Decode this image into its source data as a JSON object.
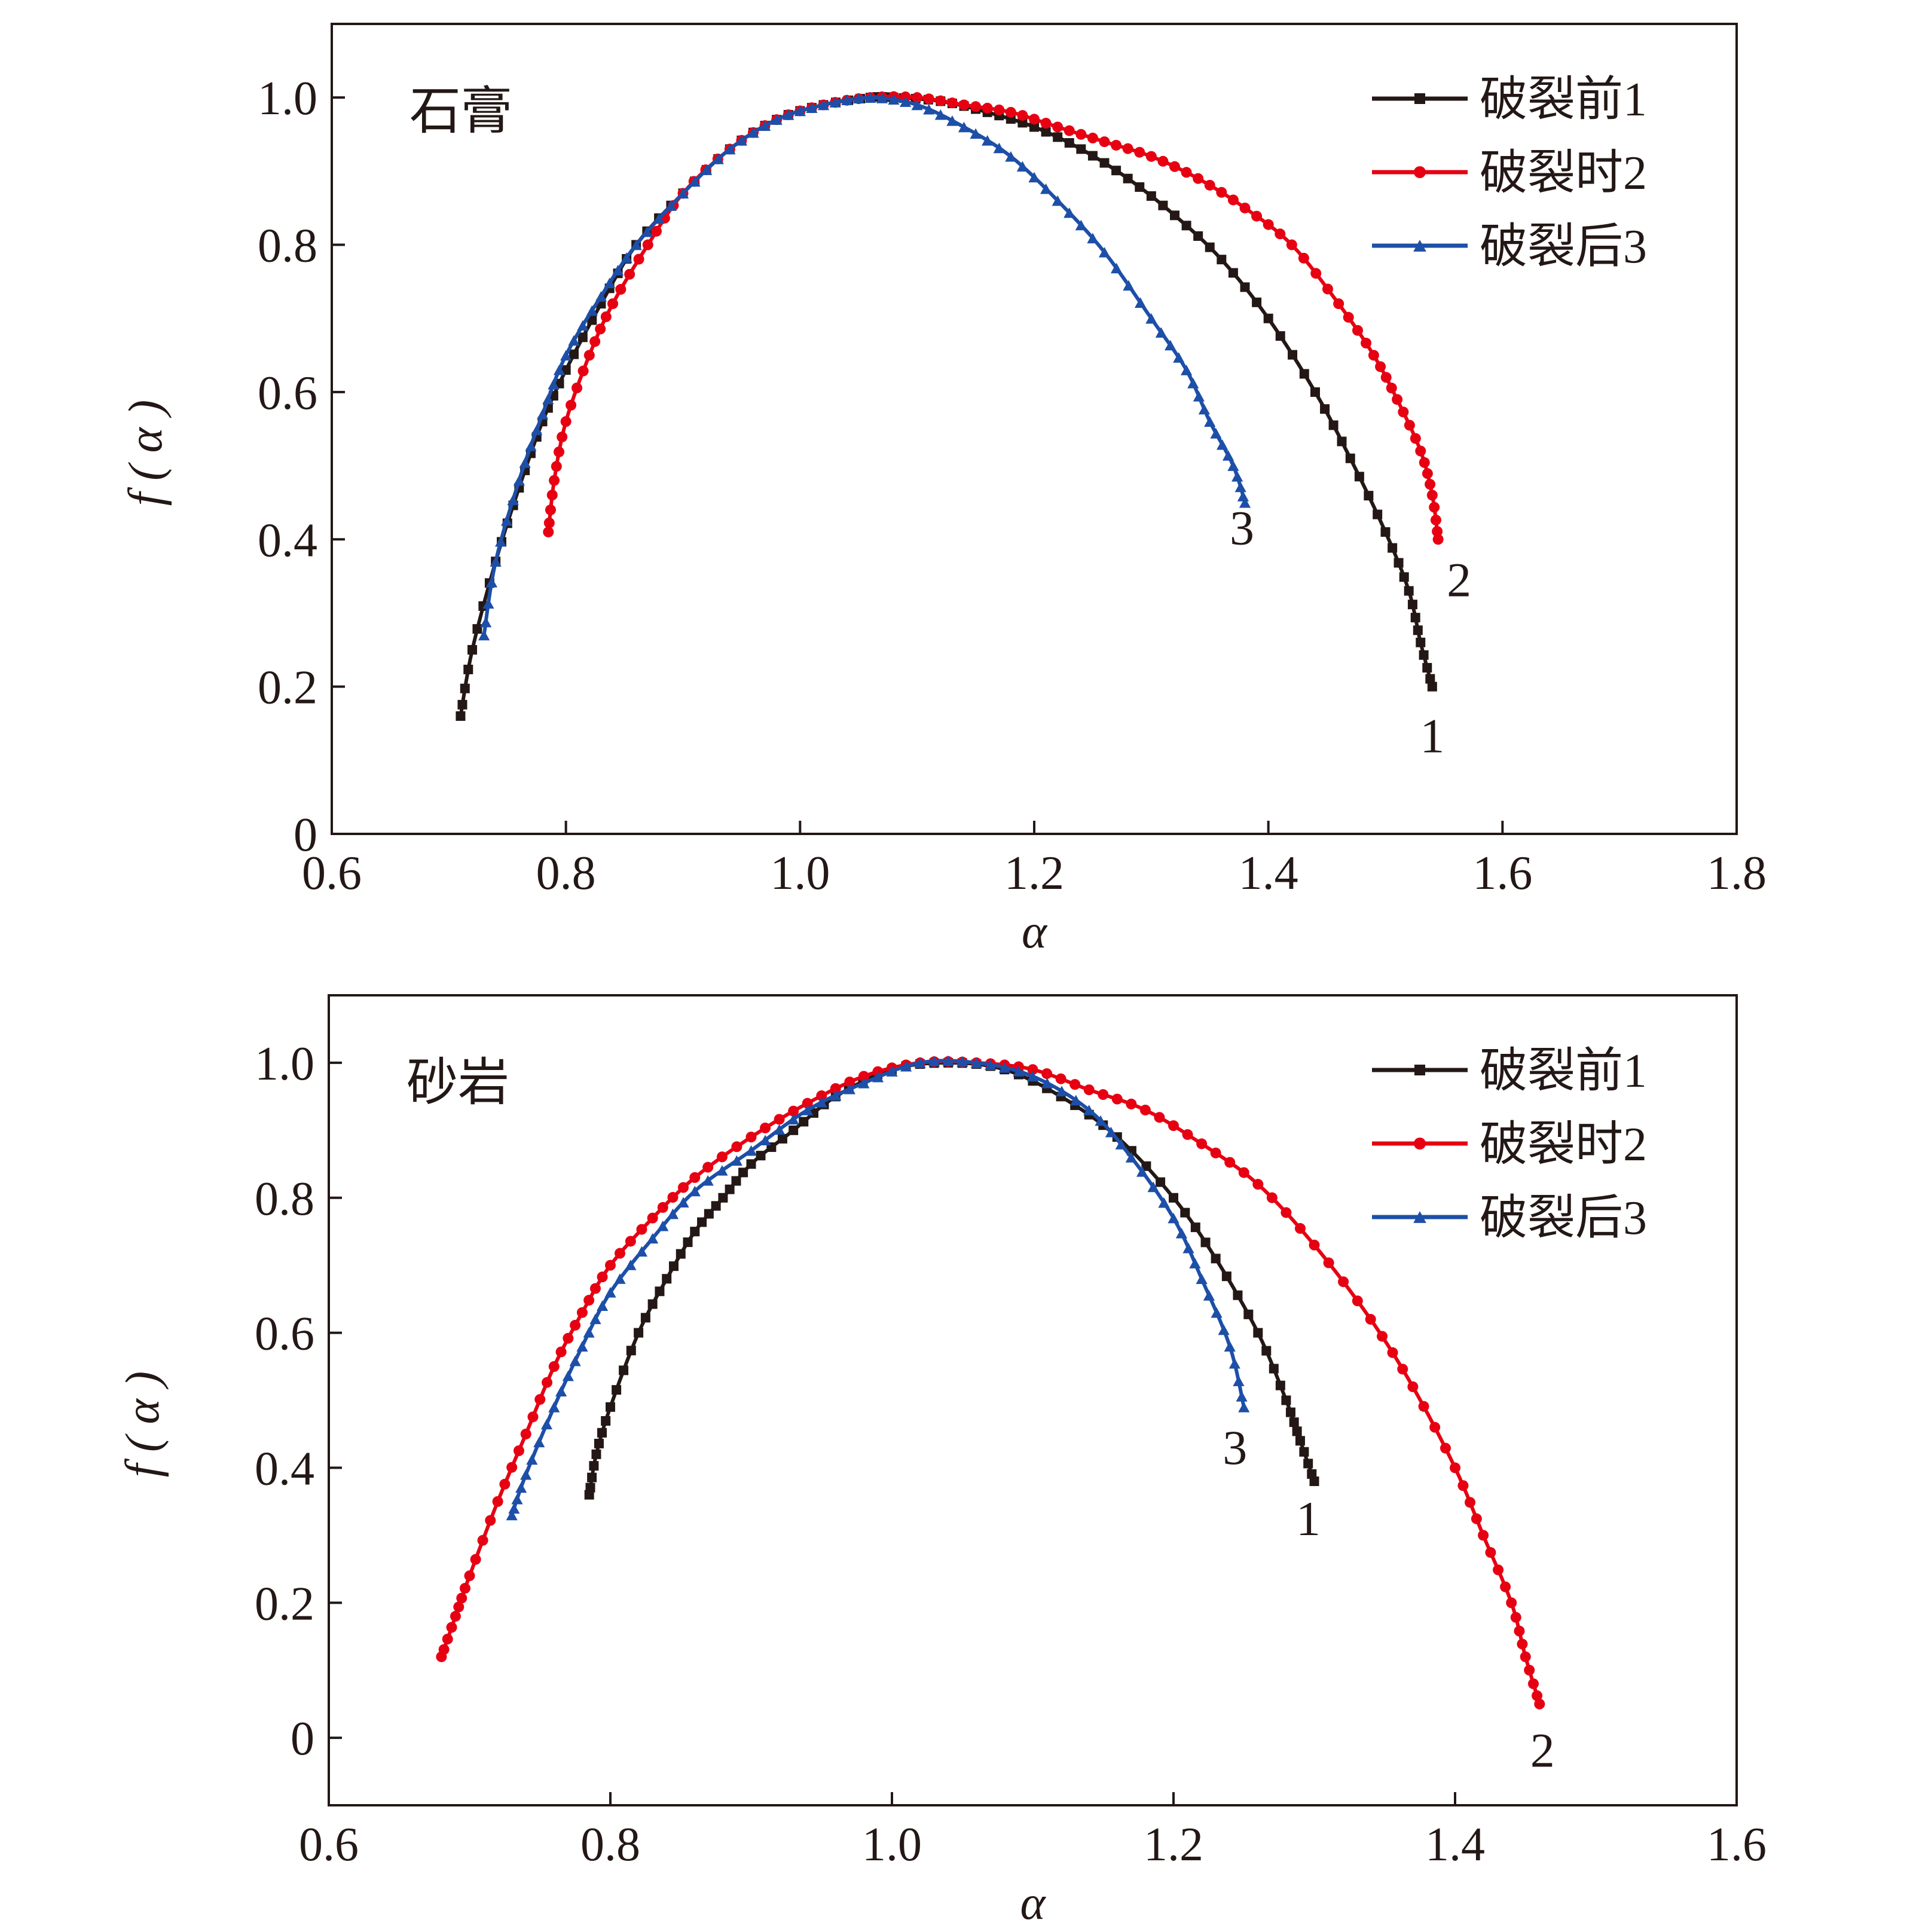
{
  "chart_data": [
    {
      "type": "line",
      "annotation": "石膏",
      "xlabel": "α",
      "ylabel": "f ( α )",
      "xlim": [
        0.6,
        1.8
      ],
      "ylim": [
        0.0,
        1.1
      ],
      "xticks": [
        {
          "value": 0.6,
          "label": "0.6"
        },
        {
          "value": 0.8,
          "label": "0.8"
        },
        {
          "value": 1.0,
          "label": "1.0"
        },
        {
          "value": 1.2,
          "label": "1.2"
        },
        {
          "value": 1.4,
          "label": "1.4"
        },
        {
          "value": 1.6,
          "label": "1.6"
        },
        {
          "value": 1.8,
          "label": "1.8"
        }
      ],
      "yticks": [
        {
          "value": 0.0,
          "label": "0"
        },
        {
          "value": 0.2,
          "label": "0.2"
        },
        {
          "value": 0.4,
          "label": "0.4"
        },
        {
          "value": 0.6,
          "label": "0.6"
        },
        {
          "value": 0.8,
          "label": "0.8"
        },
        {
          "value": 1.0,
          "label": "1.0"
        }
      ],
      "grid": false,
      "legend_position": "top-right",
      "series": [
        {
          "name": "破裂前1",
          "end_label": "1",
          "color": "#231815",
          "marker": "square",
          "x": [
            0.71,
            0.72,
            0.74,
            0.76,
            0.78,
            0.8,
            0.83,
            0.86,
            0.9,
            0.94,
            0.98,
            1.02,
            1.06,
            1.08,
            1.12,
            1.16,
            1.2,
            1.24,
            1.28,
            1.32,
            1.36,
            1.4,
            1.44,
            1.47,
            1.5,
            1.52,
            1.53,
            1.54
          ],
          "y": [
            0.16,
            0.25,
            0.37,
            0.47,
            0.56,
            0.63,
            0.72,
            0.8,
            0.87,
            0.93,
            0.97,
            0.99,
            1.0,
            1.0,
            0.995,
            0.98,
            0.96,
            0.93,
            0.89,
            0.84,
            0.78,
            0.7,
            0.6,
            0.51,
            0.41,
            0.33,
            0.26,
            0.2
          ]
        },
        {
          "name": "破裂时2",
          "end_label": "2",
          "color": "#e60012",
          "marker": "circle",
          "x": [
            0.785,
            0.79,
            0.8,
            0.82,
            0.84,
            0.87,
            0.9,
            0.94,
            0.98,
            1.02,
            1.06,
            1.1,
            1.14,
            1.18,
            1.22,
            1.26,
            1.3,
            1.34,
            1.38,
            1.42,
            1.46,
            1.49,
            1.51,
            1.53,
            1.54,
            1.545
          ],
          "y": [
            0.41,
            0.48,
            0.56,
            0.65,
            0.72,
            0.8,
            0.87,
            0.93,
            0.97,
            0.99,
            1.0,
            1.0,
            0.99,
            0.98,
            0.96,
            0.94,
            0.92,
            0.89,
            0.85,
            0.8,
            0.72,
            0.65,
            0.59,
            0.52,
            0.46,
            0.4
          ]
        },
        {
          "name": "破裂后3",
          "end_label": "3",
          "color": "#1d4fa8",
          "marker": "triangle",
          "x": [
            0.73,
            0.74,
            0.76,
            0.78,
            0.8,
            0.83,
            0.86,
            0.9,
            0.94,
            0.98,
            1.02,
            1.06,
            1.1,
            1.14,
            1.18,
            1.22,
            1.26,
            1.3,
            1.33,
            1.35,
            1.37,
            1.38
          ],
          "y": [
            0.27,
            0.37,
            0.48,
            0.57,
            0.65,
            0.73,
            0.8,
            0.87,
            0.93,
            0.97,
            0.99,
            1.0,
            0.99,
            0.96,
            0.92,
            0.86,
            0.79,
            0.7,
            0.63,
            0.56,
            0.5,
            0.45
          ]
        }
      ]
    },
    {
      "type": "line",
      "annotation": "砂岩",
      "xlabel": "α",
      "ylabel": "f ( α )",
      "xlim": [
        0.6,
        1.6
      ],
      "ylim": [
        -0.1,
        1.1
      ],
      "xticks": [
        {
          "value": 0.6,
          "label": "0.6"
        },
        {
          "value": 0.8,
          "label": "0.8"
        },
        {
          "value": 1.0,
          "label": "1.0"
        },
        {
          "value": 1.2,
          "label": "1.2"
        },
        {
          "value": 1.4,
          "label": "1.4"
        },
        {
          "value": 1.6,
          "label": "1.6"
        }
      ],
      "yticks": [
        {
          "value": 0.0,
          "label": "0"
        },
        {
          "value": 0.2,
          "label": "0.2"
        },
        {
          "value": 0.4,
          "label": "0.4"
        },
        {
          "value": 0.6,
          "label": "0.6"
        },
        {
          "value": 0.8,
          "label": "0.8"
        },
        {
          "value": 1.0,
          "label": "1.0"
        }
      ],
      "grid": false,
      "legend_position": "top-right",
      "series": [
        {
          "name": "破裂前1",
          "end_label": "1",
          "color": "#231815",
          "marker": "square",
          "x": [
            0.785,
            0.79,
            0.8,
            0.82,
            0.84,
            0.86,
            0.88,
            0.9,
            0.93,
            0.96,
            1.0,
            1.04,
            1.08,
            1.12,
            1.16,
            1.2,
            1.23,
            1.26,
            1.28,
            1.29,
            1.3
          ],
          "y": [
            0.36,
            0.42,
            0.49,
            0.6,
            0.68,
            0.75,
            0.8,
            0.85,
            0.9,
            0.95,
            0.99,
            1.0,
            0.99,
            0.95,
            0.89,
            0.8,
            0.71,
            0.6,
            0.5,
            0.44,
            0.38
          ]
        },
        {
          "name": "破裂时2",
          "end_label": "2",
          "color": "#e60012",
          "marker": "circle",
          "x": [
            0.68,
            0.69,
            0.7,
            0.72,
            0.74,
            0.76,
            0.78,
            0.8,
            0.83,
            0.86,
            0.9,
            0.94,
            0.98,
            1.02,
            1.06,
            1.1,
            1.14,
            1.18,
            1.22,
            1.26,
            1.3,
            1.34,
            1.37,
            1.4,
            1.42,
            1.44,
            1.45,
            1.46
          ],
          "y": [
            0.12,
            0.18,
            0.24,
            0.35,
            0.45,
            0.55,
            0.63,
            0.7,
            0.77,
            0.83,
            0.89,
            0.94,
            0.98,
            1.0,
            1.0,
            0.99,
            0.96,
            0.93,
            0.88,
            0.82,
            0.73,
            0.62,
            0.52,
            0.4,
            0.3,
            0.2,
            0.12,
            0.05
          ]
        },
        {
          "name": "破裂后3",
          "end_label": "3",
          "color": "#1d4fa8",
          "marker": "triangle",
          "x": [
            0.73,
            0.74,
            0.76,
            0.78,
            0.8,
            0.83,
            0.86,
            0.9,
            0.94,
            0.98,
            1.02,
            1.06,
            1.1,
            1.14,
            1.17,
            1.2,
            1.22,
            1.24,
            1.25
          ],
          "y": [
            0.33,
            0.39,
            0.49,
            0.58,
            0.66,
            0.74,
            0.81,
            0.87,
            0.93,
            0.97,
            1.0,
            1.0,
            0.98,
            0.93,
            0.86,
            0.77,
            0.68,
            0.58,
            0.49
          ]
        }
      ]
    }
  ]
}
